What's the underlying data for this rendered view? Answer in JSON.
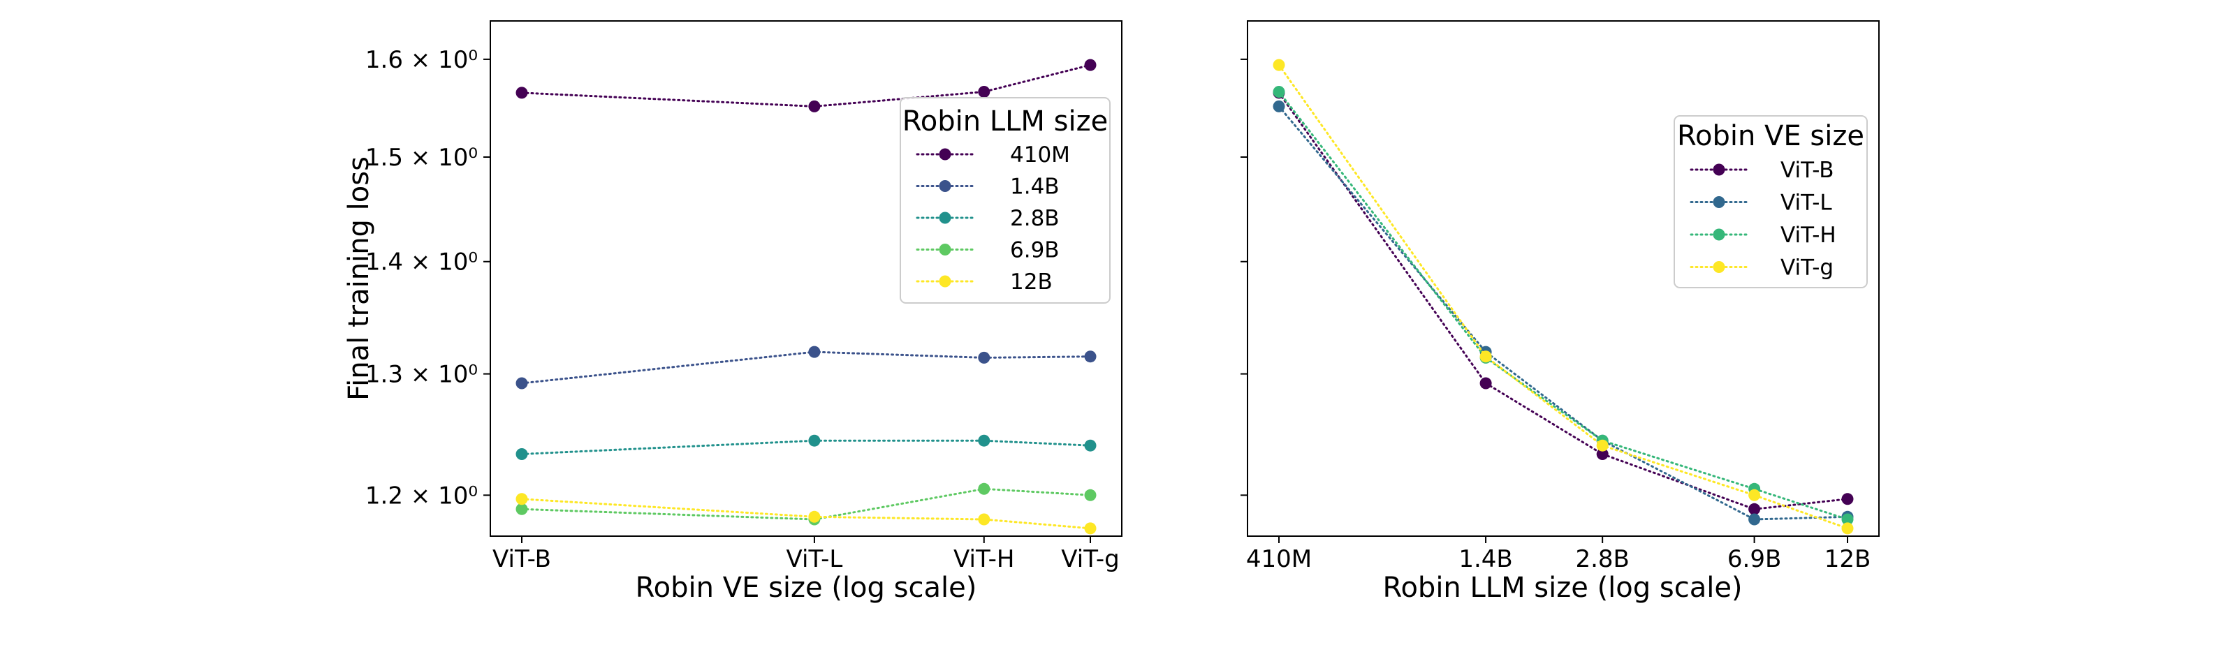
{
  "chart_data": [
    {
      "type": "line",
      "xlabel": "Robin VE size (log scale)",
      "ylabel": "Final training loss",
      "x_scale": "log",
      "y_scale": "log",
      "categories": [
        "ViT-B",
        "ViT-L",
        "ViT-H",
        "ViT-g"
      ],
      "x": [
        86,
        304,
        632,
        1000
      ],
      "y_ticks": [
        {
          "value": 1.2,
          "label": "1.2 × 10⁰"
        },
        {
          "value": 1.3,
          "label": "1.3 × 10⁰"
        },
        {
          "value": 1.4,
          "label": "1.4 × 10⁰"
        },
        {
          "value": 1.5,
          "label": "1.5 × 10⁰"
        },
        {
          "value": 1.6,
          "label": "1.6 × 10⁰"
        }
      ],
      "ylim": [
        1.168,
        1.641
      ],
      "legend": {
        "title": "Robin LLM size",
        "position": "upper right"
      },
      "series": [
        {
          "name": "410M",
          "color": "#440154",
          "values": [
            1.565,
            1.551,
            1.566,
            1.594
          ]
        },
        {
          "name": "1.4B",
          "color": "#3b528b",
          "values": [
            1.292,
            1.319,
            1.314,
            1.315
          ]
        },
        {
          "name": "2.8B",
          "color": "#21918c",
          "values": [
            1.233,
            1.244,
            1.244,
            1.24
          ]
        },
        {
          "name": "6.9B",
          "color": "#5ec962",
          "values": [
            1.189,
            1.181,
            1.205,
            1.2
          ]
        },
        {
          "name": "12B",
          "color": "#fde725",
          "values": [
            1.197,
            1.183,
            1.181,
            1.174
          ]
        }
      ]
    },
    {
      "type": "line",
      "xlabel": "Robin LLM size (log scale)",
      "ylabel": "",
      "x_scale": "log",
      "y_scale": "log",
      "categories": [
        "410M",
        "1.4B",
        "2.8B",
        "6.9B",
        "12B"
      ],
      "x": [
        0.41,
        1.4,
        2.8,
        6.9,
        12
      ],
      "ylim": [
        1.168,
        1.641
      ],
      "legend": {
        "title": "Robin VE size",
        "position": "upper right"
      },
      "series": [
        {
          "name": "ViT-B",
          "color": "#440154",
          "values": [
            1.565,
            1.292,
            1.233,
            1.189,
            1.197
          ]
        },
        {
          "name": "ViT-L",
          "color": "#31688e",
          "values": [
            1.551,
            1.319,
            1.244,
            1.181,
            1.183
          ]
        },
        {
          "name": "ViT-H",
          "color": "#35b779",
          "values": [
            1.566,
            1.314,
            1.244,
            1.205,
            1.181
          ]
        },
        {
          "name": "ViT-g",
          "color": "#fde725",
          "values": [
            1.594,
            1.315,
            1.24,
            1.2,
            1.174
          ]
        }
      ]
    }
  ]
}
